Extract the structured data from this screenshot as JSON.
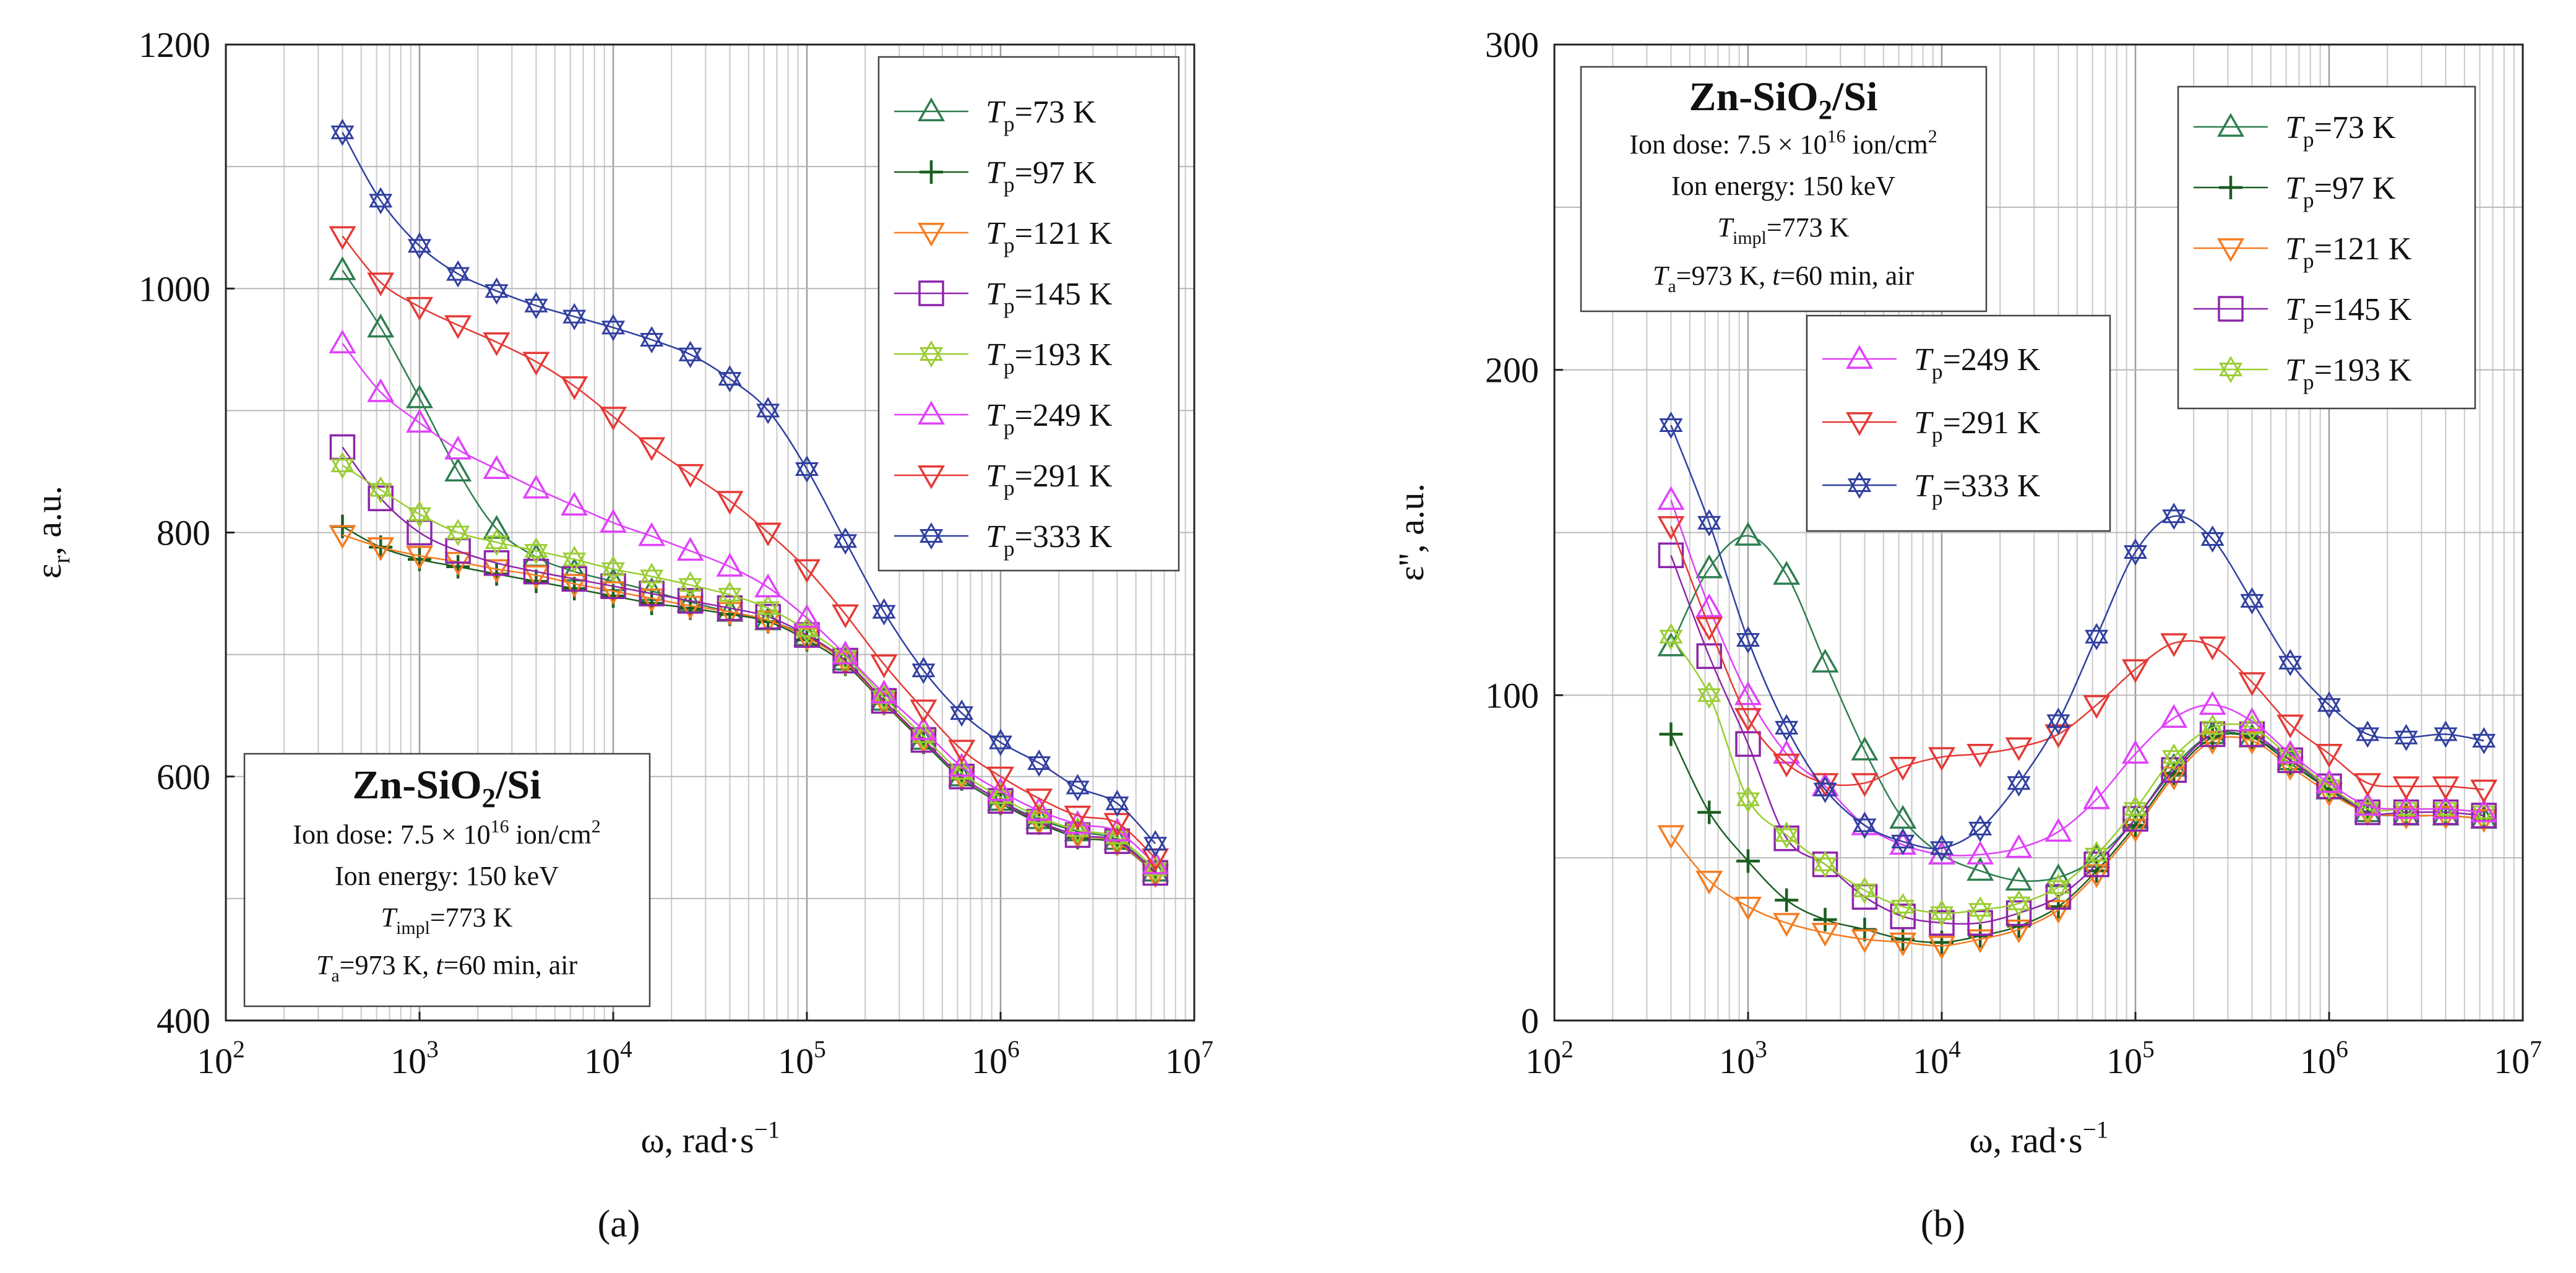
{
  "chart_data": [
    {
      "type": "line",
      "panel_label": "(a)",
      "ylabel": "ε_r, a.u.",
      "xlabel": "ω, rad·s⁻¹",
      "xscale": "log",
      "xlim": [
        100,
        10000000
      ],
      "ylim": [
        400,
        1200
      ],
      "grid": true,
      "x_ticks": [
        {
          "base": "10",
          "exp": "2"
        },
        {
          "base": "10",
          "exp": "3"
        },
        {
          "base": "10",
          "exp": "4"
        },
        {
          "base": "10",
          "exp": "5"
        },
        {
          "base": "10",
          "exp": "6"
        },
        {
          "base": "10",
          "exp": "7"
        }
      ],
      "y_ticks": [
        "400",
        "600",
        "800",
        "1000",
        "1200"
      ],
      "legend_position": "top-right",
      "annotation": {
        "position": "bottom-left",
        "title": "Zn-SiO₂/Si",
        "lines": [
          "Ion dose: 7.5 × 10¹⁶ ion/cm²",
          "Ion energy: 150 keV",
          "T_impl=773 K",
          "T_a=973 K, t=60 min, air"
        ]
      },
      "x": [
        400,
        630,
        1000,
        1580,
        2500,
        4000,
        6300,
        10000,
        15800,
        25000,
        40000,
        63000,
        100000,
        158000,
        250000,
        400000,
        630000,
        1000000,
        1580000,
        2500000,
        4000000,
        6300000
      ],
      "series": [
        {
          "name": "T_p=73 K",
          "label_sym": "T",
          "label_sub": "p",
          "label_rest": "=73 K",
          "color": "#2e7d4f",
          "marker": "triangle-up",
          "values": [
            1015,
            968,
            910,
            850,
            803,
            780,
            768,
            760,
            752,
            743,
            735,
            728,
            715,
            695,
            662,
            630,
            600,
            580,
            565,
            555,
            548,
            522
          ]
        },
        {
          "name": "T_p=97 K",
          "label_sym": "T",
          "label_sub": "p",
          "label_rest": "=97 K",
          "color": "#1b5e20",
          "marker": "plus",
          "values": [
            805,
            788,
            778,
            772,
            766,
            760,
            754,
            748,
            742,
            738,
            733,
            727,
            712,
            692,
            660,
            628,
            598,
            578,
            562,
            550,
            545,
            520
          ]
        },
        {
          "name": "T_p=121 K",
          "label_sym": "T",
          "label_sub": "p",
          "label_rest": "=121 K",
          "color": "#f57c20",
          "marker": "triangle-down",
          "values": [
            798,
            788,
            781,
            776,
            770,
            765,
            758,
            752,
            746,
            740,
            735,
            728,
            714,
            694,
            661,
            630,
            600,
            580,
            563,
            552,
            546,
            520
          ]
        },
        {
          "name": "T_p=145 K",
          "label_sym": "T",
          "label_sub": "p",
          "label_rest": "=145 K",
          "color": "#8e24aa",
          "marker": "square",
          "values": [
            870,
            828,
            800,
            785,
            775,
            768,
            762,
            756,
            750,
            744,
            738,
            731,
            716,
            695,
            662,
            630,
            600,
            580,
            563,
            552,
            547,
            521
          ]
        },
        {
          "name": "T_p=193 K",
          "label_sym": "T",
          "label_sub": "p",
          "label_rest": "=193 K",
          "color": "#9acd32",
          "marker": "star",
          "values": [
            855,
            835,
            815,
            800,
            792,
            785,
            778,
            770,
            764,
            757,
            749,
            738,
            720,
            698,
            665,
            633,
            603,
            583,
            567,
            556,
            550,
            524
          ]
        },
        {
          "name": "T_p=249 K",
          "label_sym": "T",
          "label_sub": "p",
          "label_rest": "=249 K",
          "color": "#e040fb",
          "marker": "triangle-up",
          "values": [
            955,
            915,
            890,
            868,
            852,
            836,
            822,
            808,
            797,
            785,
            772,
            755,
            730,
            700,
            668,
            638,
            608,
            588,
            572,
            561,
            555,
            528
          ]
        },
        {
          "name": "T_p=291 K",
          "label_sym": "T",
          "label_sub": "p",
          "label_rest": "=291 K",
          "color": "#e53935",
          "marker": "triangle-down",
          "values": [
            1043,
            1005,
            985,
            970,
            956,
            940,
            920,
            895,
            870,
            848,
            826,
            800,
            770,
            733,
            692,
            655,
            622,
            600,
            582,
            568,
            562,
            533
          ]
        },
        {
          "name": "T_p=333 K",
          "label_sym": "T",
          "label_sub": "p",
          "label_rest": "=333 K",
          "color": "#303f9f",
          "marker": "star",
          "values": [
            1128,
            1072,
            1035,
            1012,
            998,
            986,
            977,
            968,
            958,
            946,
            926,
            900,
            852,
            793,
            735,
            687,
            652,
            628,
            611,
            591,
            578,
            545
          ]
        }
      ]
    },
    {
      "type": "line",
      "panel_label": "(b)",
      "ylabel": "ε'', a.u.",
      "xlabel": "ω, rad·s⁻¹",
      "xscale": "log",
      "xlim": [
        100,
        10000000
      ],
      "ylim": [
        0,
        300
      ],
      "grid": true,
      "x_ticks": [
        {
          "base": "10",
          "exp": "2"
        },
        {
          "base": "10",
          "exp": "3"
        },
        {
          "base": "10",
          "exp": "4"
        },
        {
          "base": "10",
          "exp": "5"
        },
        {
          "base": "10",
          "exp": "6"
        },
        {
          "base": "10",
          "exp": "7"
        }
      ],
      "y_ticks": [
        "0",
        "100",
        "200",
        "300"
      ],
      "legend_position": "top-right",
      "annotation": {
        "position": "top-left",
        "title": "Zn-SiO₂/Si",
        "lines": [
          "Ion dose: 7.5 × 10¹⁶ ion/cm²",
          "Ion energy: 150 keV",
          "T_impl=773 K",
          "T_a=973 K, t=60 min, air"
        ]
      },
      "x": [
        400,
        630,
        1000,
        1580,
        2500,
        4000,
        6300,
        10000,
        15800,
        25000,
        40000,
        63000,
        100000,
        158000,
        250000,
        400000,
        630000,
        1000000,
        1580000,
        2500000,
        4000000,
        6300000
      ],
      "series": [
        {
          "name": "T_p=73 K",
          "label_sym": "T",
          "label_sub": "p",
          "label_rest": "=73 K",
          "color": "#2e7d4f",
          "marker": "triangle-up",
          "values": [
            115,
            139,
            149,
            137,
            110,
            83,
            62,
            51,
            46,
            43,
            44,
            50,
            62,
            78,
            88,
            87,
            80,
            71,
            64,
            63,
            63,
            62
          ]
        },
        {
          "name": "T_p=97 K",
          "label_sym": "T",
          "label_sub": "p",
          "label_rest": "=97 K",
          "color": "#1b5e20",
          "marker": "plus",
          "values": [
            88,
            64,
            49,
            37,
            31,
            28,
            25,
            24,
            26,
            29,
            35,
            46,
            60,
            76,
            87,
            87,
            79,
            71,
            64,
            63,
            63,
            62
          ]
        },
        {
          "name": "T_p=121 K",
          "label_sym": "T",
          "label_sub": "p",
          "label_rest": "=121 K",
          "color": "#f57c20",
          "marker": "triangle-down",
          "values": [
            57,
            43,
            35,
            30,
            27,
            25,
            24,
            23,
            25,
            28,
            34,
            45,
            59,
            75,
            86,
            86,
            78,
            70,
            64,
            63,
            63,
            62
          ]
        },
        {
          "name": "T_p=145 K",
          "label_sym": "T",
          "label_sub": "p",
          "label_rest": "=145 K",
          "color": "#8e24aa",
          "marker": "square",
          "values": [
            143,
            112,
            85,
            56,
            48,
            38,
            32,
            30,
            30,
            33,
            38,
            48,
            62,
            77,
            88,
            88,
            80,
            72,
            64,
            64,
            64,
            63
          ]
        },
        {
          "name": "T_p=193 K",
          "label_sym": "T",
          "label_sub": "p",
          "label_rest": "=193 K",
          "color": "#9acd32",
          "marker": "star",
          "values": [
            118,
            100,
            68,
            57,
            48,
            40,
            35,
            33,
            34,
            36,
            41,
            51,
            65,
            81,
            90,
            90,
            81,
            72,
            65,
            65,
            65,
            64
          ]
        },
        {
          "name": "T_p=249 K",
          "label_sym": "T",
          "label_sub": "p",
          "label_rest": "=249 K",
          "color": "#e040fb",
          "marker": "triangle-up",
          "values": [
            160,
            127,
            100,
            82,
            72,
            60,
            54,
            51,
            51,
            53,
            58,
            68,
            82,
            93,
            97,
            92,
            82,
            73,
            66,
            65,
            65,
            64
          ]
        },
        {
          "name": "T_p=291 K",
          "label_sym": "T",
          "label_sub": "p",
          "label_rest": "=291 K",
          "color": "#e53935",
          "marker": "triangle-down",
          "values": [
            152,
            121,
            93,
            79,
            73,
            73,
            78,
            81,
            82,
            84,
            88,
            97,
            108,
            116,
            115,
            104,
            91,
            82,
            73,
            72,
            72,
            71
          ]
        },
        {
          "name": "T_p=333 K",
          "label_sym": "T",
          "label_sub": "p",
          "label_rest": "=333 K",
          "color": "#303f9f",
          "marker": "star",
          "values": [
            183,
            153,
            117,
            90,
            71,
            60,
            55,
            53,
            59,
            73,
            92,
            118,
            144,
            155,
            148,
            129,
            110,
            97,
            88,
            87,
            88,
            86
          ]
        }
      ]
    }
  ]
}
